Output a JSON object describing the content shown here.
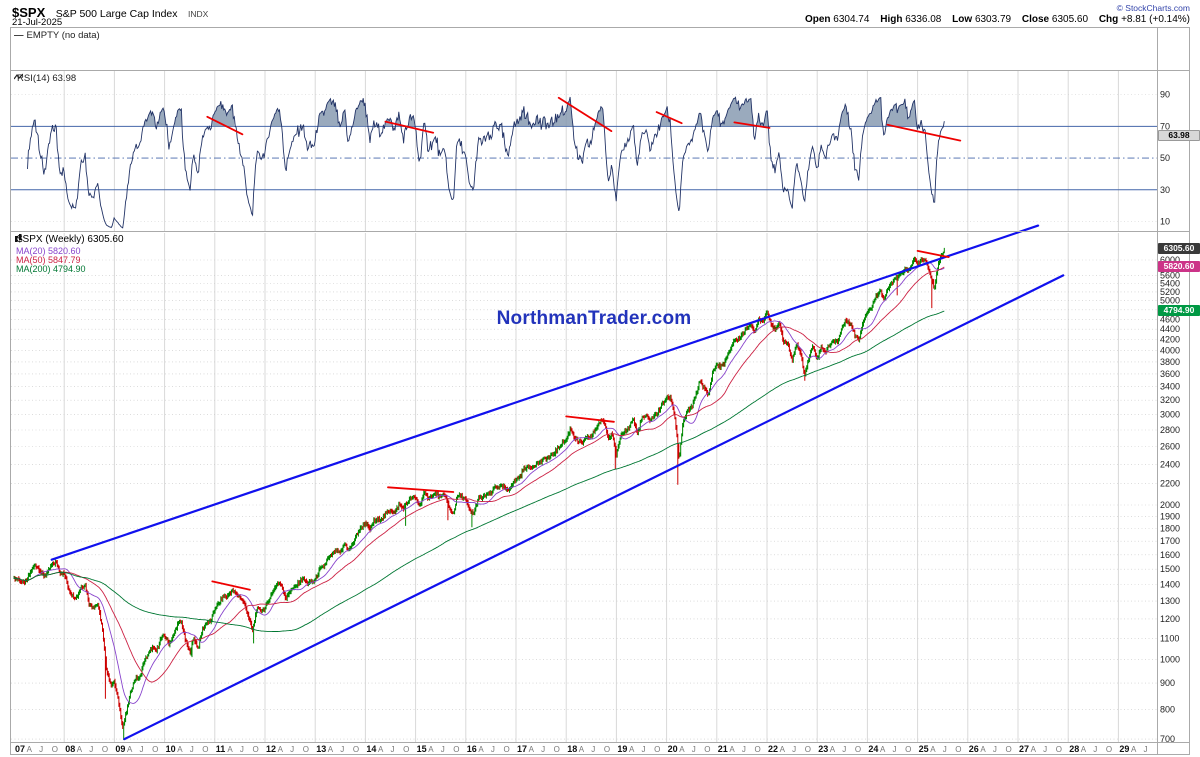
{
  "header": {
    "symbol": "$SPX",
    "name": "S&P 500 Large Cap Index",
    "exchange": "INDX",
    "date": "21-Jul-2025",
    "copyright": "© StockCharts.com",
    "quote": {
      "open_label": "Open",
      "open": "6304.74",
      "high_label": "High",
      "high": "6336.08",
      "low_label": "Low",
      "low": "6303.79",
      "close_label": "Close",
      "close": "6305.60",
      "chg_label": "Chg",
      "chg": "+8.81 (+0.14%)"
    }
  },
  "panels": {
    "empty": {
      "label": "EMPTY (no data)"
    },
    "rsi": {
      "label": "RSI(14) 63.98",
      "value_badge": "63.98"
    },
    "main": {
      "title": "$SPX (Weekly) 6305.60",
      "ma_legend": [
        {
          "label": "MA(20) 5820.60"
        },
        {
          "label": "MA(50) 5847.79"
        },
        {
          "label": "MA(200) 4794.90"
        }
      ],
      "last_price_badge": "6305.60",
      "ma_badges": [
        {
          "text": "5820.60",
          "bg": "#cc3388",
          "value": 5820.6
        },
        {
          "text": "4794.90",
          "bg": "#009944",
          "value": 4794.9
        }
      ],
      "watermark": "NorthmanTrader.com"
    }
  },
  "chart_data": {
    "type": "candlestick",
    "symbol": "$SPX",
    "timeframe": "Weekly",
    "y_scale": "log",
    "x_axis": {
      "start_year": 2007,
      "years": [
        "07",
        "08",
        "09",
        "10",
        "11",
        "12",
        "13",
        "14",
        "15",
        "16",
        "17",
        "18",
        "19",
        "20",
        "21",
        "22",
        "23",
        "24",
        "25",
        "26",
        "27",
        "28",
        "29"
      ],
      "month_marks": [
        "A",
        "J",
        "O"
      ]
    },
    "price_ticks": [
      6000,
      5600,
      5400,
      5200,
      5000,
      4800,
      4600,
      4400,
      4200,
      4000,
      3800,
      3600,
      3400,
      3200,
      3000,
      2800,
      2600,
      2400,
      2200,
      2000,
      1900,
      1800,
      1700,
      1600,
      1500,
      1400,
      1300,
      1200,
      1100,
      1000,
      900,
      800,
      700
    ],
    "rsi": {
      "period": 14,
      "last": 63.98,
      "ticks": [
        90,
        70,
        50,
        30,
        10
      ],
      "overbought": 70,
      "midline": 50,
      "oversold": 30
    },
    "monthly_closes": {
      "start": "2007-01",
      "end": "2025-07",
      "values": [
        1438,
        1407,
        1421,
        1482,
        1531,
        1503,
        1455,
        1474,
        1527,
        1549,
        1481,
        1468,
        1379,
        1331,
        1323,
        1386,
        1400,
        1280,
        1267,
        1283,
        1166,
        969,
        896,
        903,
        826,
        735,
        798,
        873,
        919,
        919,
        987,
        1021,
        1057,
        1036,
        1096,
        1115,
        1074,
        1104,
        1169,
        1187,
        1089,
        1031,
        1102,
        1049,
        1141,
        1183,
        1181,
        1258,
        1286,
        1327,
        1326,
        1364,
        1345,
        1321,
        1292,
        1219,
        1131,
        1253,
        1247,
        1258,
        1312,
        1366,
        1408,
        1398,
        1310,
        1362,
        1379,
        1407,
        1441,
        1412,
        1416,
        1426,
        1498,
        1515,
        1569,
        1598,
        1631,
        1606,
        1686,
        1633,
        1682,
        1757,
        1806,
        1848,
        1783,
        1859,
        1872,
        1884,
        1924,
        1960,
        1931,
        2003,
        1972,
        2018,
        2068,
        2059,
        1995,
        2105,
        2068,
        2086,
        2107,
        2063,
        2104,
        1972,
        1920,
        2079,
        2080,
        2044,
        1940,
        1932,
        2060,
        2065,
        2097,
        2099,
        2174,
        2171,
        2168,
        2126,
        2199,
        2239,
        2279,
        2364,
        2363,
        2384,
        2412,
        2423,
        2470,
        2472,
        2519,
        2575,
        2648,
        2674,
        2824,
        2714,
        2641,
        2648,
        2705,
        2718,
        2816,
        2902,
        2914,
        2712,
        2760,
        2507,
        2704,
        2784,
        2834,
        2946,
        2752,
        2942,
        2980,
        2926,
        2977,
        3038,
        3141,
        3231,
        3226,
        2954,
        2450,
        2912,
        3044,
        3100,
        3271,
        3500,
        3363,
        3270,
        3622,
        3756,
        3714,
        3811,
        3973,
        4181,
        4204,
        4297,
        4395,
        4523,
        4308,
        4605,
        4567,
        4766,
        4516,
        4374,
        4530,
        4132,
        4132,
        3785,
        4130,
        3955,
        3586,
        3872,
        4080,
        3840,
        4077,
        3970,
        4109,
        4169,
        4180,
        4450,
        4589,
        4508,
        4288,
        4194,
        4568,
        4770,
        4846,
        5096,
        5254,
        5036,
        5278,
        5460,
        5522,
        5648,
        5762,
        5705,
        6032,
        5882,
        6041,
        5955,
        5612,
        5286,
        5912,
        6205,
        6306
      ]
    },
    "wick_lows": [
      [
        2008.83,
        839
      ],
      [
        2009.18,
        666
      ],
      [
        2010.54,
        1011
      ],
      [
        2011.77,
        1075
      ],
      [
        2014.8,
        1821
      ],
      [
        2015.65,
        1867
      ],
      [
        2016.12,
        1810
      ],
      [
        2018.98,
        2347
      ],
      [
        2020.22,
        2191
      ],
      [
        2022.76,
        3491
      ],
      [
        2024.6,
        5119
      ],
      [
        2025.28,
        4835
      ]
    ],
    "last_week": {
      "close": 6305.6,
      "high": 6336.08,
      "low": 6303.79
    },
    "moving_averages": [
      {
        "period": 20,
        "last": 5820.6,
        "color": "#8844cc"
      },
      {
        "period": 50,
        "last": 5847.79,
        "color": "#cc2244"
      },
      {
        "period": 200,
        "last": 4794.9,
        "color": "#007733"
      }
    ],
    "trendlines": {
      "channel_color": "#1111ee",
      "resistance_color": "#ee0000",
      "blue_channel": [
        {
          "from": [
            2007.75,
            1565
          ],
          "to": [
            2027.4,
            7000
          ]
        },
        {
          "from": [
            2009.2,
            700
          ],
          "to": [
            2027.9,
            5600
          ]
        }
      ],
      "red_price": [
        {
          "from": [
            2010.95,
            1420
          ],
          "to": [
            2011.7,
            1368
          ]
        },
        {
          "from": [
            2014.45,
            2165
          ],
          "to": [
            2015.75,
            2120
          ]
        },
        {
          "from": [
            2018.0,
            2975
          ],
          "to": [
            2018.95,
            2905
          ]
        },
        {
          "from": [
            2025.0,
            6250
          ],
          "to": [
            2025.62,
            6080
          ]
        }
      ],
      "red_rsi": [
        {
          "from": [
            2010.85,
            76.0
          ],
          "to": [
            2011.55,
            65.0
          ]
        },
        {
          "from": [
            2014.4,
            73.0
          ],
          "to": [
            2015.35,
            66.0
          ]
        },
        {
          "from": [
            2017.85,
            88.0
          ],
          "to": [
            2018.9,
            67.0
          ]
        },
        {
          "from": [
            2019.8,
            79.0
          ],
          "to": [
            2020.3,
            72.0
          ]
        },
        {
          "from": [
            2021.35,
            72.5
          ],
          "to": [
            2022.05,
            69.0
          ]
        },
        {
          "from": [
            2024.4,
            71.0
          ],
          "to": [
            2025.85,
            61.0
          ]
        }
      ]
    },
    "colors": {
      "up": "#008800",
      "down": "#cc0000",
      "rsi_line": "#223366",
      "rsi_fill": "#8195ad",
      "level_line": "#4466aa",
      "grid": "#d9d9d9",
      "hgrid": "#c8c8c8",
      "border": "#aaaaaa",
      "watermark": "#2233bb"
    }
  }
}
